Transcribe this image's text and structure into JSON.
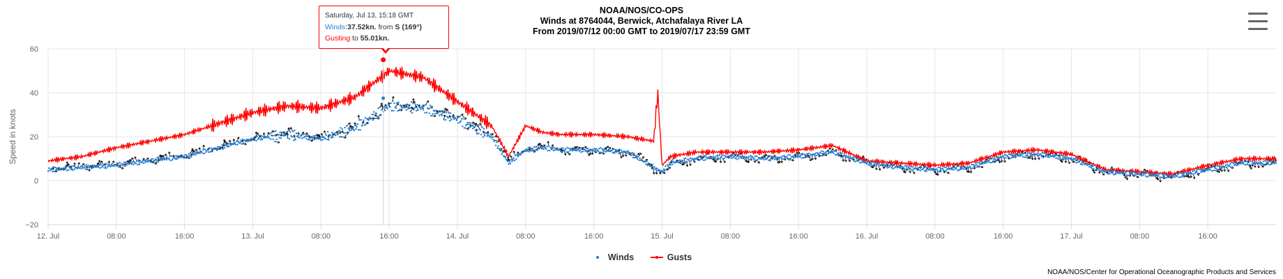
{
  "title": {
    "line1": "NOAA/NOS/CO-OPS",
    "line2": "Winds at 8764044, Berwick, Atchafalaya River LA",
    "line3": "From 2019/07/12 00:00 GMT to 2019/07/17 23:59 GMT"
  },
  "legend": {
    "winds": "Winds",
    "gusts": "Gusts"
  },
  "credits": "NOAA/NOS/Center for Operational Oceanographic Products and Services",
  "tooltip": {
    "date": "Saturday, Jul 13, 15:18 GMT",
    "winds_label": "Winds",
    "winds_value": "37.52kn.",
    "winds_from_text": " from ",
    "winds_dir": "S (169°)",
    "gust_label": "Gusting",
    "gust_to_text": " to ",
    "gust_value": "55.01kn."
  },
  "colors": {
    "winds": "#1f7fd6",
    "gusts": "#ff0000",
    "arrows": "#000000"
  },
  "chart_data": {
    "type": "line",
    "ylabel": "Speed in knots",
    "xlabel": "",
    "ylim": [
      -20,
      60
    ],
    "yticks": [
      -20,
      0,
      20,
      40,
      60
    ],
    "xlim_hours": [
      0,
      144
    ],
    "grid": true,
    "legend_position": "bottom-center",
    "x_tick_labels": [
      "12. Jul",
      "08:00",
      "16:00",
      "13. Jul",
      "08:00",
      "16:00",
      "14. Jul",
      "08:00",
      "16:00",
      "15. Jul",
      "08:00",
      "16:00",
      "16. Jul",
      "08:00",
      "16:00",
      "17. Jul",
      "08:00",
      "16:00"
    ],
    "x_tick_hours": [
      0,
      8,
      16,
      24,
      32,
      40,
      48,
      56,
      64,
      72,
      80,
      88,
      96,
      104,
      112,
      120,
      128,
      136
    ],
    "tooltip_point": {
      "x": "Jul 13 15:18",
      "winds": 37.52,
      "gusts": 55.01,
      "direction_deg": 169
    },
    "series": [
      {
        "name": "Winds",
        "x_hours": [
          0,
          4,
          8,
          12,
          16,
          20,
          24,
          28,
          32,
          36,
          40,
          44,
          48,
          52,
          54,
          56,
          58,
          60,
          64,
          68,
          71,
          72,
          73,
          76,
          80,
          84,
          88,
          92,
          96,
          100,
          104,
          108,
          112,
          116,
          120,
          124,
          128,
          132,
          136,
          140,
          144
        ],
        "values": [
          5,
          6,
          7,
          9,
          11,
          15,
          19,
          21,
          19,
          24,
          34,
          33,
          28,
          20,
          8,
          14,
          15,
          14,
          14,
          13,
          6,
          4,
          8,
          10,
          11,
          10,
          11,
          13,
          8,
          6,
          5,
          6,
          11,
          12,
          10,
          4,
          3,
          2,
          5,
          8,
          8
        ]
      },
      {
        "name": "Gusts",
        "x_hours": [
          0,
          4,
          8,
          12,
          16,
          20,
          24,
          28,
          32,
          36,
          40,
          44,
          48,
          52,
          54,
          56,
          58,
          60,
          64,
          68,
          71,
          71.5,
          72,
          73,
          76,
          80,
          84,
          88,
          92,
          96,
          100,
          104,
          108,
          112,
          116,
          120,
          124,
          128,
          132,
          136,
          140,
          144
        ],
        "values": [
          9,
          11,
          15,
          18,
          21,
          26,
          31,
          34,
          33,
          38,
          50,
          47,
          36,
          25,
          11,
          25,
          22,
          21,
          21,
          20,
          18,
          40,
          7,
          11,
          13,
          13,
          13,
          14,
          16,
          9,
          8,
          7,
          8,
          13,
          14,
          12,
          5,
          4,
          3,
          7,
          10,
          10
        ]
      }
    ]
  }
}
